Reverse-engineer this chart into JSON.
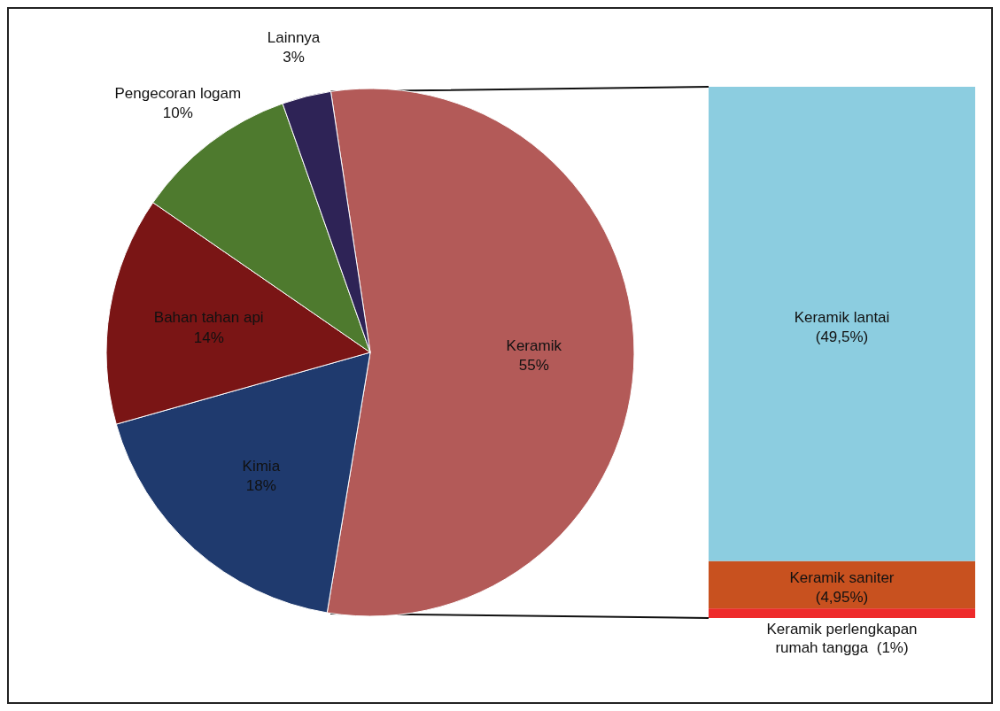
{
  "chart_data": [
    {
      "type": "pie",
      "categories": [
        "Keramik",
        "Kimia",
        "Bahan tahan api",
        "Pengecoran logam",
        "Lainnya"
      ],
      "values": [
        55,
        18,
        14,
        10,
        3
      ],
      "colors": [
        "#b35a58",
        "#1f3a6e",
        "#7a1515",
        "#4e7a2e",
        "#2e2356"
      ],
      "value_labels": [
        "55%",
        "18%",
        "14%",
        "10%",
        "3%"
      ]
    },
    {
      "type": "bar",
      "stacked": true,
      "categories": [
        null
      ],
      "series": [
        {
          "name": "Keramik perlengkapan rumah tangga",
          "color": "#ee2a2a",
          "values": [
            1
          ],
          "value_labels": [
            "(1%)"
          ]
        },
        {
          "name": "Keramik saniter",
          "color": "#c8511f",
          "values": [
            4.95
          ],
          "value_labels": [
            "(4,95%)"
          ]
        },
        {
          "name": "Keramik lantai",
          "color": "#8ccde0",
          "values": [
            49.5
          ],
          "value_labels": [
            "(49,5%)"
          ]
        }
      ]
    }
  ]
}
